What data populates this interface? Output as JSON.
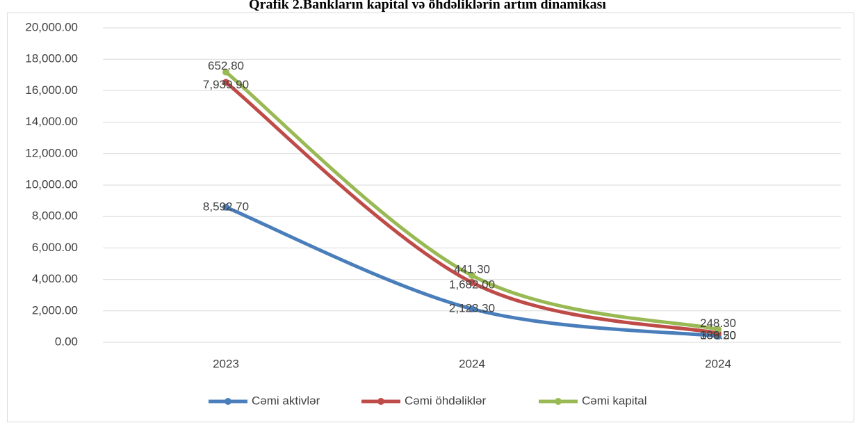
{
  "chart_data": {
    "type": "line",
    "stacked": true,
    "title": "Qrafik 2.Bankların kapital və öhdəliklərin artım dinamikası",
    "categories": [
      "2023",
      "2024",
      "2024"
    ],
    "series": [
      {
        "name": "Cəmi aktivlər",
        "color": "#4a7ebb",
        "values": [
          8592.7,
          2123.3,
          389.5
        ],
        "value_labels": [
          "8,592.70",
          "2,123.30",
          "389.50"
        ]
      },
      {
        "name": "Cəmi öhdəliklər",
        "color": "#be4b48",
        "values": [
          7939.9,
          1682.0,
          186.2
        ],
        "value_labels": [
          "7,939.90",
          "1,682.00",
          "186.20"
        ]
      },
      {
        "name": "Cəmi kapital",
        "color": "#98b954",
        "values": [
          652.8,
          441.3,
          248.3
        ],
        "value_labels": [
          "652.80",
          "441.30",
          "248.30"
        ]
      }
    ],
    "ylim": [
      0,
      20000
    ],
    "yticks": [
      {
        "value": 0,
        "label": "0.00"
      },
      {
        "value": 2000,
        "label": "2,000.00"
      },
      {
        "value": 4000,
        "label": "4,000.00"
      },
      {
        "value": 6000,
        "label": "6,000.00"
      },
      {
        "value": 8000,
        "label": "8,000.00"
      },
      {
        "value": 10000,
        "label": "10,000.00"
      },
      {
        "value": 12000,
        "label": "12,000.00"
      },
      {
        "value": 14000,
        "label": "14,000.00"
      },
      {
        "value": 16000,
        "label": "16,000.00"
      },
      {
        "value": 18000,
        "label": "18,000.00"
      },
      {
        "value": 20000,
        "label": "20,000.00"
      }
    ],
    "grid": true,
    "legend": "bottom"
  }
}
